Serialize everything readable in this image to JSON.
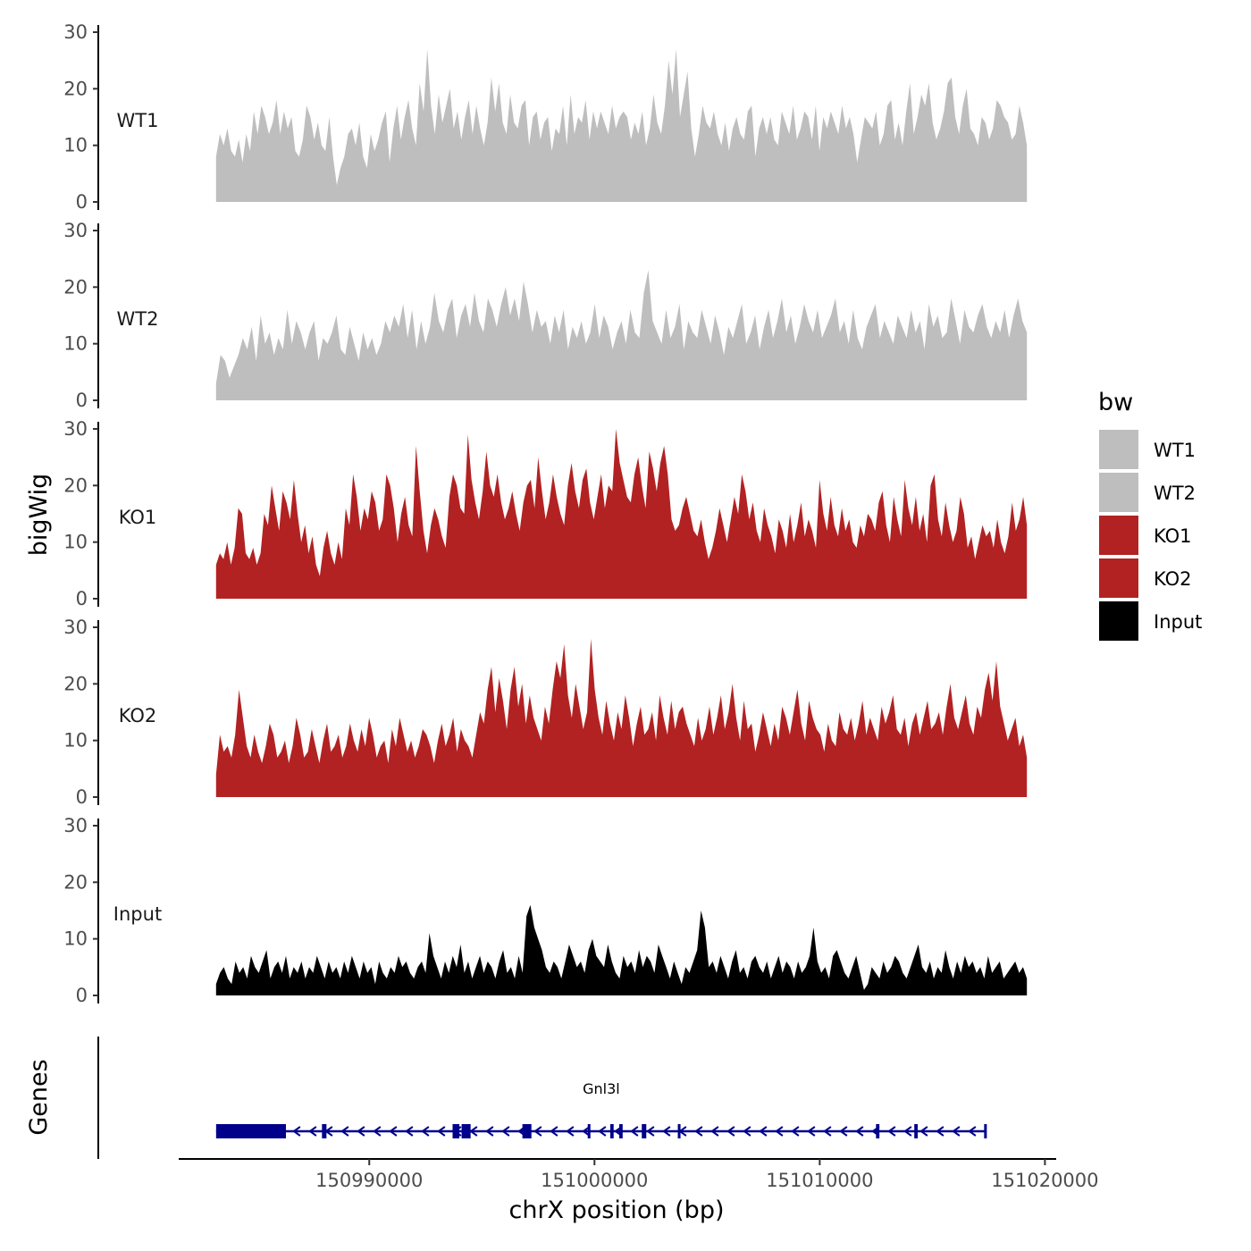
{
  "chart_data": {
    "type": "area",
    "y_axis_title": "bigWig",
    "genes_axis_title": "Genes",
    "x_axis_title": "chrX position (bp)",
    "xlim": [
      150981500,
      151020500
    ],
    "x_ticks": [
      150990000,
      151000000,
      151010000,
      151020000
    ],
    "x_tick_labels": [
      "150990000",
      "151000000",
      "151010000",
      "151020000"
    ],
    "ylim": [
      0,
      30
    ],
    "y_ticks": [
      0,
      10,
      20,
      30
    ],
    "y_tick_labels": [
      "0",
      "10",
      "20",
      "30"
    ],
    "data_range": [
      150983200,
      151019200
    ],
    "tracks": [
      {
        "name": "WT1",
        "color": "#bebebe",
        "values": [
          8,
          12,
          10,
          13,
          9,
          8,
          11,
          7,
          12,
          9,
          16,
          12,
          17,
          15,
          12,
          14,
          18,
          12,
          16,
          13,
          15,
          9,
          8,
          11,
          17,
          15,
          11,
          14,
          10,
          9,
          15,
          8,
          3,
          6,
          8,
          12,
          13,
          10,
          14,
          8,
          6,
          12,
          9,
          11,
          14,
          16,
          7,
          13,
          17,
          11,
          15,
          18,
          13,
          10,
          21,
          16,
          27,
          17,
          12,
          19,
          14,
          17,
          20,
          13,
          16,
          11,
          15,
          18,
          12,
          17,
          13,
          10,
          14,
          22,
          16,
          21,
          14,
          12,
          19,
          14,
          13,
          17,
          18,
          10,
          15,
          16,
          11,
          14,
          15,
          9,
          13,
          12,
          17,
          10,
          19,
          12,
          15,
          14,
          18,
          11,
          16,
          13,
          16,
          14,
          12,
          17,
          13,
          15,
          16,
          15,
          11,
          14,
          12,
          16,
          10,
          13,
          19,
          14,
          12,
          17,
          25,
          19,
          27,
          15,
          19,
          23,
          13,
          8,
          12,
          17,
          14,
          13,
          16,
          12,
          10,
          14,
          9,
          13,
          15,
          12,
          11,
          16,
          17,
          8,
          13,
          15,
          12,
          15,
          11,
          10,
          16,
          14,
          12,
          17,
          11,
          13,
          16,
          15,
          11,
          17,
          9,
          15,
          13,
          16,
          14,
          12,
          17,
          13,
          15,
          12,
          7,
          11,
          15,
          14,
          13,
          16,
          10,
          12,
          17,
          18,
          11,
          14,
          10,
          16,
          21,
          12,
          15,
          19,
          17,
          21,
          14,
          11,
          13,
          16,
          21,
          22,
          15,
          12,
          17,
          20,
          13,
          12,
          10,
          15,
          14,
          11,
          13,
          18,
          17,
          15,
          14,
          11,
          12,
          17,
          14,
          10
        ]
      },
      {
        "name": "WT2",
        "color": "#bebebe",
        "values": [
          3,
          8,
          7,
          4,
          6,
          8,
          11,
          9,
          13,
          7,
          15,
          10,
          12,
          8,
          11,
          9,
          16,
          10,
          14,
          12,
          9,
          12,
          14,
          7,
          11,
          10,
          12,
          15,
          9,
          8,
          13,
          10,
          7,
          12,
          9,
          11,
          8,
          10,
          14,
          12,
          15,
          13,
          17,
          11,
          16,
          9,
          14,
          10,
          13,
          19,
          14,
          12,
          16,
          18,
          11,
          15,
          17,
          13,
          19,
          14,
          12,
          18,
          16,
          13,
          17,
          20,
          15,
          18,
          14,
          21,
          17,
          12,
          16,
          13,
          14,
          10,
          15,
          12,
          16,
          9,
          13,
          11,
          14,
          10,
          12,
          17,
          11,
          15,
          13,
          9,
          12,
          14,
          10,
          16,
          12,
          11,
          19,
          23,
          14,
          12,
          10,
          16,
          11,
          13,
          17,
          9,
          14,
          12,
          11,
          16,
          13,
          10,
          15,
          12,
          8,
          13,
          11,
          14,
          17,
          10,
          12,
          15,
          9,
          13,
          16,
          11,
          14,
          18,
          12,
          15,
          10,
          13,
          17,
          14,
          12,
          16,
          11,
          13,
          15,
          18,
          12,
          14,
          10,
          16,
          11,
          9,
          13,
          15,
          17,
          11,
          14,
          12,
          10,
          15,
          13,
          11,
          16,
          12,
          14,
          9,
          17,
          13,
          15,
          11,
          12,
          18,
          14,
          10,
          16,
          13,
          12,
          15,
          17,
          13,
          11,
          14,
          12,
          16,
          11,
          15,
          18,
          14,
          12
        ]
      },
      {
        "name": "KO1",
        "color": "#b22222",
        "values": [
          6,
          8,
          7,
          10,
          6,
          9,
          16,
          15,
          8,
          7,
          9,
          6,
          8,
          15,
          13,
          20,
          16,
          12,
          19,
          17,
          14,
          21,
          15,
          10,
          13,
          8,
          11,
          6,
          4,
          9,
          12,
          8,
          6,
          10,
          7,
          16,
          13,
          22,
          18,
          12,
          16,
          14,
          19,
          17,
          12,
          14,
          22,
          20,
          16,
          10,
          15,
          18,
          13,
          11,
          27,
          19,
          12,
          8,
          13,
          16,
          14,
          11,
          9,
          18,
          22,
          20,
          16,
          15,
          29,
          21,
          17,
          14,
          19,
          26,
          20,
          18,
          22,
          17,
          14,
          16,
          19,
          15,
          12,
          17,
          20,
          21,
          16,
          25,
          19,
          14,
          17,
          22,
          18,
          15,
          13,
          20,
          24,
          19,
          16,
          21,
          23,
          17,
          14,
          18,
          22,
          16,
          20,
          19,
          30,
          24,
          21,
          18,
          17,
          22,
          25,
          20,
          16,
          26,
          23,
          19,
          24,
          27,
          22,
          14,
          12,
          13,
          16,
          18,
          15,
          12,
          11,
          14,
          10,
          7,
          9,
          12,
          16,
          13,
          10,
          14,
          18,
          15,
          22,
          19,
          14,
          17,
          12,
          10,
          16,
          13,
          11,
          8,
          14,
          12,
          9,
          15,
          10,
          13,
          17,
          11,
          14,
          12,
          9,
          21,
          15,
          12,
          18,
          13,
          11,
          16,
          12,
          14,
          10,
          9,
          13,
          11,
          15,
          14,
          12,
          17,
          19,
          13,
          10,
          18,
          14,
          11,
          21,
          16,
          13,
          18,
          12,
          15,
          10,
          20,
          22,
          14,
          11,
          17,
          13,
          10,
          12,
          18,
          15,
          9,
          11,
          7,
          10,
          13,
          11,
          12,
          9,
          14,
          10,
          8,
          11,
          17,
          12,
          14,
          18,
          13
        ]
      },
      {
        "name": "KO2",
        "color": "#b22222",
        "values": [
          4,
          11,
          8,
          9,
          7,
          11,
          19,
          14,
          9,
          7,
          11,
          8,
          6,
          9,
          13,
          11,
          7,
          8,
          10,
          6,
          9,
          14,
          11,
          7,
          8,
          12,
          9,
          6,
          10,
          13,
          8,
          9,
          11,
          7,
          9,
          13,
          10,
          8,
          12,
          9,
          14,
          11,
          7,
          9,
          10,
          6,
          12,
          9,
          14,
          11,
          8,
          10,
          7,
          9,
          12,
          11,
          9,
          6,
          10,
          13,
          9,
          11,
          14,
          8,
          12,
          10,
          9,
          7,
          11,
          15,
          13,
          19,
          23,
          15,
          21,
          17,
          12,
          19,
          23,
          16,
          20,
          13,
          18,
          14,
          12,
          10,
          16,
          13,
          19,
          24,
          21,
          27,
          18,
          14,
          20,
          16,
          12,
          15,
          28,
          19,
          14,
          11,
          17,
          13,
          10,
          15,
          12,
          18,
          14,
          9,
          13,
          16,
          11,
          12,
          15,
          10,
          18,
          14,
          11,
          17,
          12,
          15,
          16,
          13,
          11,
          9,
          14,
          10,
          12,
          16,
          11,
          14,
          18,
          12,
          15,
          20,
          14,
          10,
          17,
          12,
          13,
          8,
          11,
          15,
          12,
          9,
          13,
          10,
          16,
          14,
          11,
          15,
          19,
          13,
          10,
          17,
          14,
          12,
          11,
          8,
          13,
          10,
          9,
          15,
          12,
          11,
          14,
          10,
          13,
          17,
          11,
          14,
          12,
          10,
          16,
          13,
          15,
          18,
          12,
          11,
          14,
          9,
          13,
          15,
          11,
          14,
          17,
          12,
          13,
          15,
          11,
          16,
          20,
          14,
          12,
          15,
          18,
          13,
          11,
          16,
          14,
          19,
          22,
          17,
          24,
          16,
          13,
          10,
          12,
          14,
          9,
          11,
          7
        ]
      },
      {
        "name": "Input",
        "color": "#000000",
        "values": [
          2,
          4,
          5,
          3,
          2,
          6,
          4,
          5,
          3,
          7,
          5,
          4,
          6,
          8,
          3,
          5,
          6,
          4,
          7,
          3,
          5,
          4,
          6,
          3,
          5,
          4,
          7,
          5,
          3,
          6,
          4,
          5,
          3,
          6,
          4,
          7,
          5,
          3,
          6,
          4,
          5,
          2,
          6,
          4,
          3,
          5,
          4,
          7,
          5,
          6,
          4,
          3,
          5,
          6,
          4,
          11,
          7,
          5,
          3,
          6,
          4,
          7,
          5,
          9,
          4,
          6,
          3,
          5,
          7,
          4,
          6,
          5,
          3,
          6,
          8,
          4,
          5,
          3,
          7,
          4,
          14,
          16,
          12,
          10,
          8,
          5,
          4,
          6,
          5,
          3,
          6,
          9,
          7,
          5,
          6,
          4,
          8,
          10,
          7,
          6,
          5,
          9,
          6,
          4,
          3,
          7,
          5,
          6,
          4,
          8,
          5,
          7,
          6,
          4,
          9,
          7,
          5,
          3,
          6,
          4,
          2,
          5,
          4,
          6,
          8,
          15,
          12,
          5,
          6,
          4,
          7,
          5,
          3,
          6,
          8,
          4,
          5,
          3,
          6,
          7,
          5,
          4,
          6,
          3,
          5,
          7,
          4,
          6,
          5,
          3,
          6,
          4,
          5,
          7,
          12,
          6,
          4,
          5,
          3,
          7,
          8,
          6,
          4,
          3,
          5,
          7,
          4,
          1,
          2,
          5,
          4,
          3,
          6,
          4,
          5,
          7,
          6,
          4,
          3,
          5,
          7,
          9,
          5,
          4,
          6,
          3,
          5,
          4,
          8,
          5,
          3,
          6,
          4,
          7,
          5,
          6,
          4,
          5,
          3,
          7,
          4,
          5,
          6,
          3,
          4,
          5,
          6,
          4,
          5,
          3
        ]
      }
    ],
    "legend": {
      "title": "bw",
      "entries": [
        {
          "label": "WT1",
          "color": "#bebebe"
        },
        {
          "label": "WT2",
          "color": "#bebebe"
        },
        {
          "label": "KO1",
          "color": "#b22222"
        },
        {
          "label": "KO2",
          "color": "#b22222"
        },
        {
          "label": "Input",
          "color": "#000000"
        }
      ]
    },
    "gene": {
      "name": "Gnl3l",
      "color": "#00008b",
      "strand": "-",
      "start": 150983200,
      "end": 151017400,
      "exons": [
        [
          150983200,
          150986300
        ],
        [
          150987900,
          150988100
        ],
        [
          150993700,
          150994000
        ],
        [
          150994100,
          150994500
        ],
        [
          150996800,
          150997200
        ],
        [
          150999700,
          150999800
        ],
        [
          151000700,
          151000850
        ],
        [
          151001100,
          151001250
        ],
        [
          151002100,
          151002300
        ],
        [
          151003700,
          151003800
        ],
        [
          151012500,
          151012650
        ],
        [
          151014200,
          151014350
        ],
        [
          151017300,
          151017400
        ]
      ]
    }
  }
}
